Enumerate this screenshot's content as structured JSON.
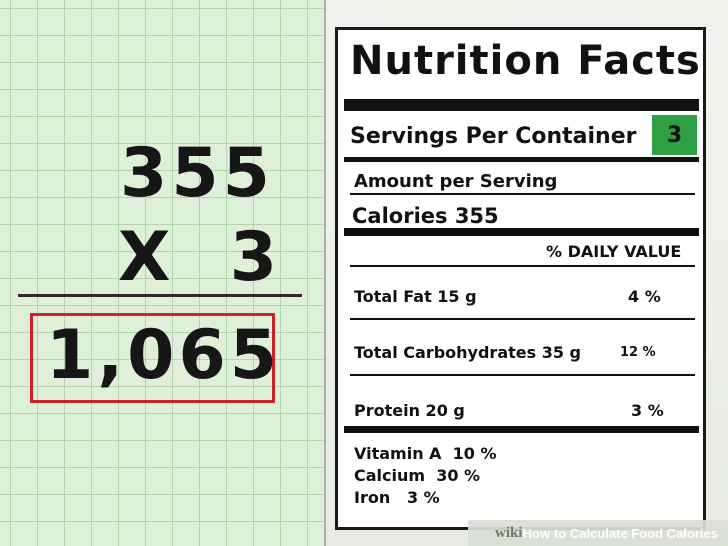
{
  "math": {
    "multiplicand": "355",
    "multiplier": "X  3",
    "result": "1,065"
  },
  "label": {
    "title": "Nutrition Facts",
    "servings_label": "Servings Per Container",
    "servings_value": "3",
    "amount_per_serving": "Amount per Serving",
    "calories": "Calories  355",
    "daily_value_header": "% DAILY VALUE",
    "nutrients": [
      {
        "name": "Total Fat 15 g",
        "dv": "4 %"
      },
      {
        "name": "Total Carbohydrates 35 g",
        "dv": "12 %"
      },
      {
        "name": "Protein 20 g",
        "dv": "3 %"
      }
    ],
    "vitamins": [
      "Vitamin A  10 %",
      "Calcium  30 %",
      "Iron   3 %"
    ]
  },
  "watermark": {
    "wiki": "wiki",
    "how": "How",
    "rest": "to Calculate Food Calories"
  },
  "colors": {
    "result_box_border": "#d21f2a",
    "servings_badge": "#2ea043",
    "grid_paper": "#dff0d8"
  }
}
